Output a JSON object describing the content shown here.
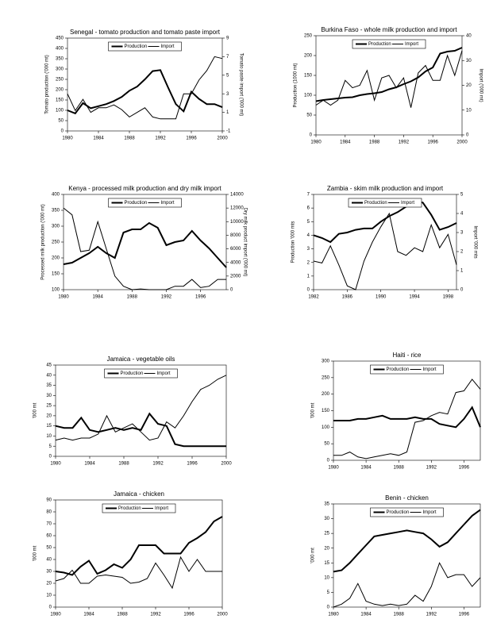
{
  "chart_data": [
    {
      "type": "line",
      "title": "Senegal - tomato production and tomato paste import",
      "ylabel": "Tomato production ('000 mt)",
      "y2label": "Tomato paste import ('000 mt)",
      "x": [
        1980,
        1981,
        1982,
        1983,
        1984,
        1985,
        1986,
        1987,
        1988,
        1989,
        1990,
        1991,
        1992,
        1993,
        1994,
        1995,
        1996,
        1997,
        1998,
        1999,
        2000
      ],
      "xlim": [
        1980,
        2000
      ],
      "xticks": [
        1980,
        1984,
        1988,
        1992,
        1996,
        2000
      ],
      "ylim": [
        0,
        450
      ],
      "yticks": [
        0,
        50,
        100,
        150,
        200,
        250,
        300,
        350,
        400,
        450
      ],
      "y2lim": [
        -1,
        9
      ],
      "y2ticks": [
        -1,
        1,
        3,
        5,
        7,
        9
      ],
      "legend": "upper center",
      "series": [
        {
          "name": "Production",
          "color": "#000000",
          "width": 2,
          "values": [
            100,
            85,
            135,
            110,
            120,
            130,
            145,
            165,
            195,
            215,
            250,
            290,
            295,
            210,
            130,
            95,
            190,
            155,
            130,
            130,
            115
          ]
        },
        {
          "name": "Import",
          "color": "#000000",
          "width": 1,
          "axis": "y2",
          "values": [
            3.0,
            1.2,
            2.4,
            1.0,
            1.5,
            1.5,
            1.8,
            1.3,
            0.5,
            1.0,
            1.5,
            0.5,
            0.3,
            0.3,
            0.3,
            3.0,
            3.0,
            4.5,
            5.5,
            7.0,
            6.8
          ]
        }
      ]
    },
    {
      "type": "line",
      "title": "Burkina Faso - whole milk production and import",
      "ylabel": "Production (1000 mt)",
      "y2label": "Import ('000 mt)",
      "x": [
        1980,
        1981,
        1982,
        1983,
        1984,
        1985,
        1986,
        1987,
        1988,
        1989,
        1990,
        1991,
        1992,
        1993,
        1994,
        1995,
        1996,
        1997,
        1998,
        1999,
        2000
      ],
      "xlim": [
        1980,
        2000
      ],
      "xticks": [
        1980,
        1984,
        1988,
        1992,
        1996,
        2000
      ],
      "ylim": [
        0,
        250
      ],
      "yticks": [
        0,
        50,
        100,
        150,
        200,
        250
      ],
      "y2lim": [
        0,
        40
      ],
      "y2ticks": [
        0,
        10,
        20,
        30,
        40
      ],
      "legend": "upper center",
      "series": [
        {
          "name": "Production",
          "color": "#000000",
          "width": 2,
          "values": [
            85,
            88,
            90,
            92,
            94,
            95,
            100,
            103,
            105,
            108,
            115,
            120,
            128,
            135,
            145,
            160,
            170,
            205,
            210,
            212,
            220
          ]
        },
        {
          "name": "Import",
          "color": "#000000",
          "width": 1,
          "axis": "y2",
          "values": [
            12,
            14,
            12,
            14,
            22,
            19,
            20,
            26,
            14,
            23,
            24,
            19,
            23,
            11,
            25,
            28,
            22,
            22,
            32,
            24,
            34
          ]
        }
      ]
    },
    {
      "type": "line",
      "title": "Kenya - processed milk production and dry milk import",
      "ylabel": "Processed milk production ('000 mt)",
      "y2label": "Dry milk product import ('000 mt)",
      "x": [
        1980,
        1981,
        1982,
        1983,
        1984,
        1985,
        1986,
        1987,
        1988,
        1989,
        1990,
        1991,
        1992,
        1993,
        1994,
        1995,
        1996,
        1997,
        1998,
        1999
      ],
      "xlim": [
        1980,
        1999
      ],
      "xticks": [
        1980,
        1984,
        1988,
        1992,
        1996
      ],
      "ylim": [
        100,
        400
      ],
      "yticks": [
        100,
        150,
        200,
        250,
        300,
        350,
        400
      ],
      "y2lim": [
        0,
        14000
      ],
      "y2ticks": [
        0,
        2000,
        4000,
        6000,
        8000,
        10000,
        12000,
        14000
      ],
      "legend": "upper center",
      "series": [
        {
          "name": "Production",
          "color": "#000000",
          "width": 2,
          "values": [
            180,
            185,
            200,
            215,
            235,
            215,
            200,
            280,
            290,
            290,
            310,
            295,
            240,
            250,
            255,
            285,
            255,
            230,
            200,
            170
          ]
        },
        {
          "name": "Import",
          "color": "#000000",
          "width": 1,
          "axis": "y2",
          "values": [
            12000,
            11000,
            5600,
            5800,
            10000,
            6000,
            2000,
            500,
            0,
            100,
            0,
            0,
            0,
            500,
            500,
            1500,
            300,
            500,
            1500,
            1500
          ]
        }
      ]
    },
    {
      "type": "line",
      "title": "Zambia - skim milk production and import",
      "ylabel": "Production '000 mts",
      "y2label": "Import '000 mts",
      "x": [
        1982,
        1983,
        1984,
        1985,
        1986,
        1987,
        1988,
        1989,
        1990,
        1991,
        1992,
        1993,
        1994,
        1995,
        1996,
        1997,
        1998,
        1999
      ],
      "xlim": [
        1982,
        1999
      ],
      "xticks": [
        1982,
        1986,
        1990,
        1994,
        1998
      ],
      "ylim": [
        0,
        7
      ],
      "yticks": [
        0,
        1,
        2,
        3,
        4,
        5,
        6,
        7
      ],
      "y2lim": [
        0,
        5
      ],
      "y2ticks": [
        0,
        1,
        2,
        3,
        4,
        5
      ],
      "legend": "upper center",
      "series": [
        {
          "name": "Production",
          "color": "#000000",
          "width": 2,
          "values": [
            4.0,
            3.8,
            3.5,
            4.1,
            4.2,
            4.4,
            4.5,
            4.5,
            5.0,
            5.4,
            5.7,
            6.1,
            6.5,
            6.4,
            5.5,
            4.4,
            4.6,
            4.9
          ]
        },
        {
          "name": "Import",
          "color": "#000000",
          "width": 1,
          "axis": "y2",
          "values": [
            1.5,
            1.4,
            2.3,
            1.3,
            0.2,
            0,
            1.5,
            2.5,
            3.3,
            4.0,
            2.0,
            1.8,
            2.2,
            2.0,
            3.4,
            2.2,
            2.9,
            1.3
          ]
        }
      ]
    },
    {
      "type": "line",
      "title": "Jamaica - vegetable oils",
      "ylabel": "'000 mt",
      "x": [
        1980,
        1981,
        1982,
        1983,
        1984,
        1985,
        1986,
        1987,
        1988,
        1989,
        1990,
        1991,
        1992,
        1993,
        1994,
        1995,
        1996,
        1997,
        1998,
        1999,
        2000
      ],
      "xlim": [
        1980,
        2000
      ],
      "xticks": [
        1980,
        1984,
        1988,
        1992,
        1996,
        2000
      ],
      "ylim": [
        0,
        45
      ],
      "yticks": [
        0,
        5,
        10,
        15,
        20,
        25,
        30,
        35,
        40,
        45
      ],
      "legend": "upper center",
      "series": [
        {
          "name": "Production",
          "color": "#000000",
          "width": 2,
          "values": [
            15,
            14,
            14,
            19,
            13,
            12,
            13,
            14,
            13,
            14,
            13,
            21,
            16,
            15,
            6,
            5,
            5,
            5,
            5,
            5,
            5
          ]
        },
        {
          "name": "Import",
          "color": "#000000",
          "width": 1,
          "values": [
            8,
            9,
            8,
            9,
            9,
            11,
            20,
            12,
            14,
            16,
            12,
            8,
            9,
            17,
            14,
            20,
            27,
            33,
            35,
            38,
            40
          ]
        }
      ]
    },
    {
      "type": "line",
      "title": "Haiti - rice",
      "ylabel": "'000 mt",
      "x": [
        1980,
        1981,
        1982,
        1983,
        1984,
        1985,
        1986,
        1987,
        1988,
        1989,
        1990,
        1991,
        1992,
        1993,
        1994,
        1995,
        1996,
        1997,
        1998
      ],
      "xlim": [
        1980,
        1998
      ],
      "xticks": [
        1980,
        1984,
        1988,
        1992,
        1996
      ],
      "ylim": [
        0,
        300
      ],
      "yticks": [
        0,
        50,
        100,
        150,
        200,
        250,
        300
      ],
      "legend": "upper center",
      "series": [
        {
          "name": "Production",
          "color": "#000000",
          "width": 2,
          "values": [
            120,
            120,
            120,
            125,
            125,
            130,
            135,
            125,
            125,
            125,
            130,
            125,
            125,
            110,
            105,
            100,
            125,
            160,
            100
          ]
        },
        {
          "name": "Import",
          "color": "#000000",
          "width": 1,
          "values": [
            15,
            15,
            25,
            10,
            5,
            10,
            15,
            20,
            15,
            25,
            115,
            120,
            135,
            145,
            140,
            205,
            210,
            245,
            215
          ]
        }
      ]
    },
    {
      "type": "line",
      "title": "Jamaica - chicken",
      "ylabel": "'000 mt",
      "x": [
        1980,
        1981,
        1982,
        1983,
        1984,
        1985,
        1986,
        1987,
        1988,
        1989,
        1990,
        1991,
        1992,
        1993,
        1994,
        1995,
        1996,
        1997,
        1998,
        1999,
        2000
      ],
      "xlim": [
        1980,
        2000
      ],
      "xticks": [
        1980,
        1984,
        1988,
        1992,
        1996,
        2000
      ],
      "ylim": [
        0,
        90
      ],
      "yticks": [
        0,
        10,
        20,
        30,
        40,
        50,
        60,
        70,
        80,
        90
      ],
      "legend": "upper center",
      "series": [
        {
          "name": "Production",
          "color": "#000000",
          "width": 2,
          "values": [
            30,
            29,
            27,
            34,
            39,
            28,
            31,
            36,
            33,
            40,
            52,
            52,
            52,
            45,
            45,
            45,
            54,
            58,
            63,
            72,
            76
          ]
        },
        {
          "name": "Import",
          "color": "#000000",
          "width": 1,
          "values": [
            22,
            24,
            31,
            20,
            20,
            26,
            27,
            26,
            25,
            20,
            21,
            24,
            37,
            27,
            16,
            42,
            30,
            40,
            30,
            30,
            30
          ]
        }
      ]
    },
    {
      "type": "line",
      "title": "Benin - chicken",
      "ylabel": "'000 mt",
      "x": [
        1980,
        1981,
        1982,
        1983,
        1984,
        1985,
        1986,
        1987,
        1988,
        1989,
        1990,
        1991,
        1992,
        1993,
        1994,
        1995,
        1996,
        1997,
        1998
      ],
      "xlim": [
        1980,
        1998
      ],
      "xticks": [
        1980,
        1984,
        1988,
        1992,
        1996
      ],
      "ylim": [
        0,
        35
      ],
      "yticks": [
        0,
        5,
        10,
        15,
        20,
        25,
        30,
        35
      ],
      "legend": "upper center",
      "series": [
        {
          "name": "Production",
          "color": "#000000",
          "width": 2,
          "values": [
            12,
            12.5,
            15,
            18,
            21,
            24,
            24.5,
            25,
            25.5,
            26,
            25.5,
            25,
            23,
            20.5,
            22,
            25,
            28,
            31,
            33
          ]
        },
        {
          "name": "Import",
          "color": "#000000",
          "width": 1,
          "values": [
            0,
            1,
            3,
            8,
            2,
            1,
            0.5,
            1,
            0.5,
            1,
            4,
            2,
            7,
            15,
            10,
            11,
            11,
            7,
            10
          ]
        }
      ]
    }
  ]
}
